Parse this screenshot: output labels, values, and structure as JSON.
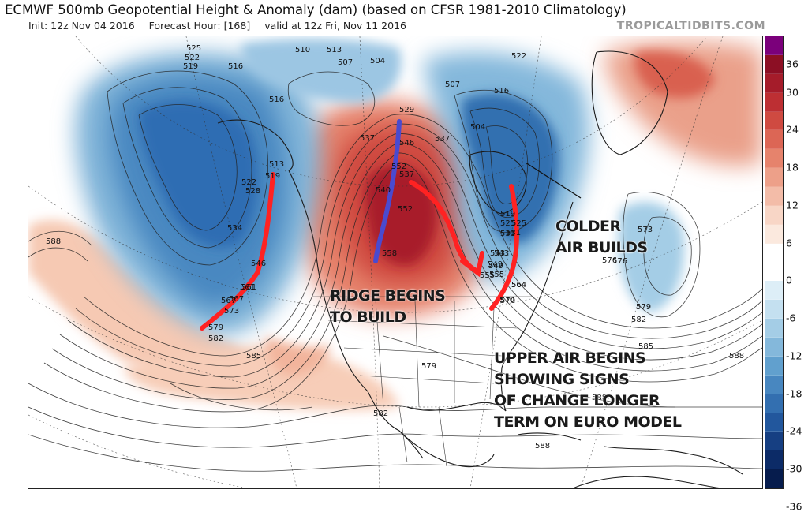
{
  "header": {
    "title": "ECMWF 500mb Geopotential Height & Anomaly (dam) (based on CFSR 1981-2010 Climatology)",
    "init": "Init: 12z Nov 04 2016",
    "forecast_hour": "Forecast Hour: [168]",
    "valid": "valid at 12z Fri, Nov 11 2016",
    "brand": "TROPICALTIDBITS.COM"
  },
  "colorbar": {
    "ticks": [
      "36",
      "30",
      "24",
      "18",
      "12",
      "6",
      "0",
      "-6",
      "-12",
      "-18",
      "-24",
      "-30",
      "-36"
    ],
    "colors": [
      "#7b007b",
      "#8c0f24",
      "#a51c2a",
      "#bd2f33",
      "#cf4a41",
      "#dc6655",
      "#e6836c",
      "#eda089",
      "#f3bca8",
      "#f8d6c6",
      "#fbe9de",
      "#ffffff",
      "#ffffff",
      "#ddeef7",
      "#c4e0f0",
      "#a4cde6",
      "#84b8db",
      "#61a0ce",
      "#4887c0",
      "#336fb0",
      "#22579d",
      "#163f82",
      "#0c2b67",
      "#061c4d"
    ]
  },
  "annotations": {
    "colder": [
      "COLDER",
      "AIR BUILDS"
    ],
    "ridge": [
      "RIDGE BEGINS",
      "TO BUILD"
    ],
    "upper": [
      "UPPER AIR BEGINS",
      "SHOWING SIGNS",
      "OF CHANGE LONGER",
      "TERM ON EURO MODEL"
    ]
  },
  "height_labels": [
    "525",
    "522",
    "519",
    "516",
    "510",
    "513",
    "507",
    "504",
    "522",
    "516",
    "507",
    "504",
    "529",
    "537",
    "546",
    "552",
    "516",
    "513",
    "519",
    "522",
    "525",
    "528",
    "531",
    "534",
    "537",
    "540",
    "543",
    "546",
    "549",
    "552",
    "555",
    "558",
    "561",
    "564",
    "567",
    "570",
    "573",
    "576",
    "579",
    "582",
    "585",
    "588",
    "573",
    "576",
    "579",
    "582",
    "585",
    "588",
    "579",
    "582",
    "588",
    "588",
    "519",
    "525",
    "531",
    "537",
    "543",
    "549",
    "555",
    "561",
    "564",
    "567",
    "570"
  ],
  "map_colors": {
    "warm_anomaly": "#c0272d",
    "cold_anomaly": "#2f6db3",
    "drawn_ridge_axis": "#4a4ad0",
    "drawn_trough_axes": "#ff2222"
  }
}
